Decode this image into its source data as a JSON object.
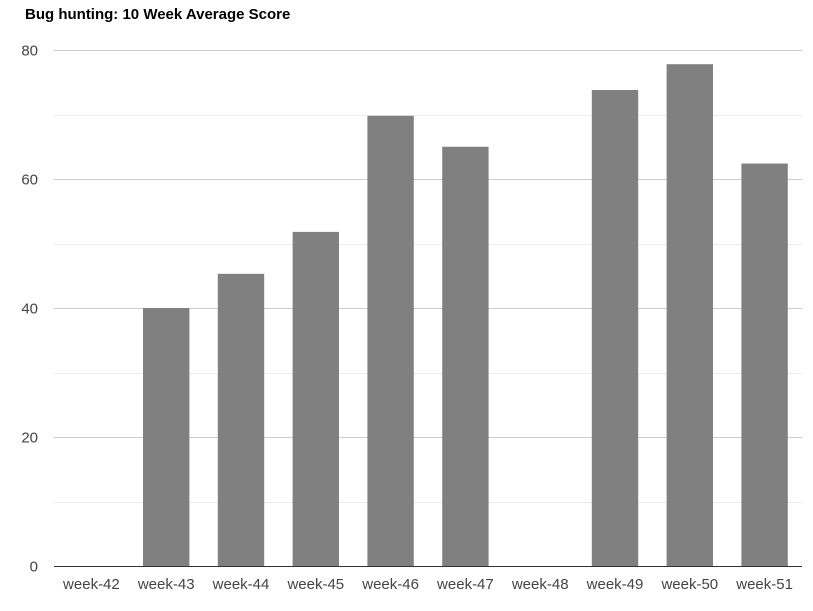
{
  "chart_data": {
    "type": "bar",
    "title": "Bug hunting: 10 Week Average Score",
    "xlabel": "",
    "ylabel": "",
    "categories": [
      "week-42",
      "week-43",
      "week-44",
      "week-45",
      "week-46",
      "week-47",
      "week-48",
      "week-49",
      "week-50",
      "week-51"
    ],
    "values": [
      0,
      40,
      45.3,
      51.8,
      69.8,
      65,
      0,
      73.8,
      77.8,
      62.4
    ],
    "ylim": [
      0,
      80
    ],
    "yticks": [
      "0",
      "20",
      "40",
      "60",
      "80"
    ],
    "grid": true,
    "legend": "none",
    "colors": {
      "bar": "#808080",
      "major_grid": "#cccccc",
      "minor_grid": "#ebebeb",
      "axis": "#333333"
    }
  }
}
